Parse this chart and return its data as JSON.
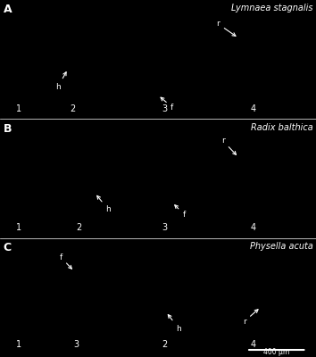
{
  "fig_width": 3.54,
  "fig_height": 4.0,
  "dpi": 100,
  "background_color": "#000000",
  "text_color": "#ffffff",
  "panels": [
    {
      "label": "A",
      "species": "Lymnaea stagnalis"
    },
    {
      "label": "B",
      "species": "Radix balthica"
    },
    {
      "label": "C",
      "species": "Physella acuta"
    }
  ],
  "scalebar_text": "400 μm",
  "panel_label_fontsize": 9,
  "species_fontsize": 7,
  "number_fontsize": 7,
  "annotation_fontsize": 6.5
}
